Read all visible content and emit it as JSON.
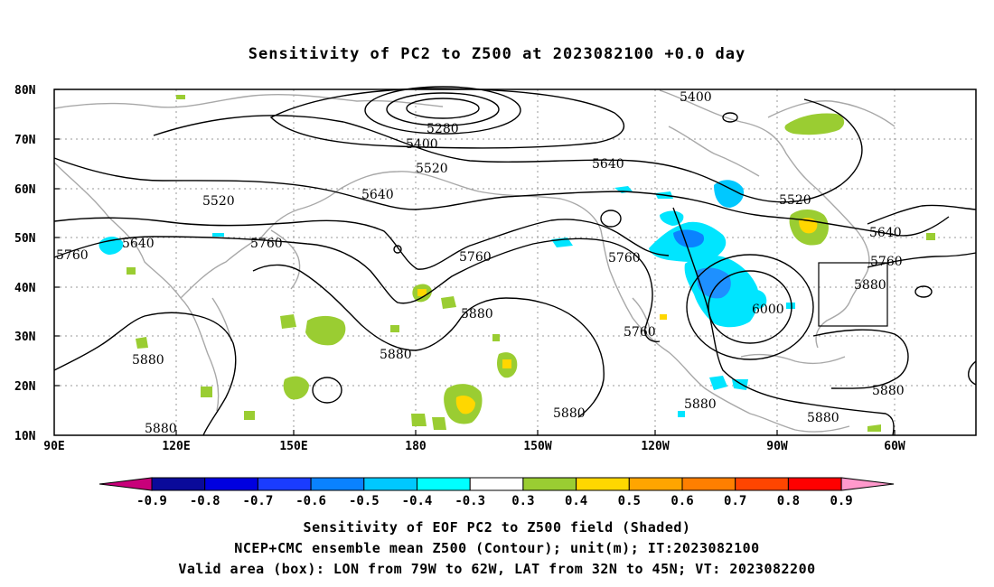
{
  "title": "Sensitivity of PC2 to Z500 at 2023082100 +0.0 day",
  "lat_labels": [
    "80N",
    "70N",
    "60N",
    "50N",
    "40N",
    "30N",
    "20N",
    "10N"
  ],
  "lon_labels": [
    "90E",
    "120E",
    "150E",
    "180",
    "150W",
    "120W",
    "90W",
    "60W"
  ],
  "contour_labels": [
    {
      "text": "5400",
      "kind": "z500"
    },
    {
      "text": "5280",
      "kind": "z500"
    },
    {
      "text": "5400",
      "kind": "z500"
    },
    {
      "text": "5520",
      "kind": "z500"
    },
    {
      "text": "5640",
      "kind": "z500"
    },
    {
      "text": "5520",
      "kind": "z500"
    },
    {
      "text": "5640",
      "kind": "z500"
    },
    {
      "text": "5520",
      "kind": "z500"
    },
    {
      "text": "5640",
      "kind": "z500"
    },
    {
      "text": "5760",
      "kind": "z500"
    },
    {
      "text": "5640",
      "kind": "z500"
    },
    {
      "text": "5760",
      "kind": "z500"
    },
    {
      "text": "5760",
      "kind": "z500"
    },
    {
      "text": "5760",
      "kind": "z500"
    },
    {
      "text": "5760",
      "kind": "z500"
    },
    {
      "text": "5880",
      "kind": "z500"
    },
    {
      "text": "5880",
      "kind": "z500"
    },
    {
      "text": "5880",
      "kind": "z500"
    },
    {
      "text": "5760",
      "kind": "z500"
    },
    {
      "text": "6000",
      "kind": "z500"
    },
    {
      "text": "5880",
      "kind": "z500"
    },
    {
      "text": "5880",
      "kind": "z500"
    },
    {
      "text": "5880",
      "kind": "z500"
    },
    {
      "text": "5880",
      "kind": "z500"
    },
    {
      "text": "5880",
      "kind": "z500"
    },
    {
      "text": "5880",
      "kind": "z500"
    }
  ],
  "colorbar": {
    "labels": [
      "-0.9",
      "-0.8",
      "-0.7",
      "-0.6",
      "-0.5",
      "-0.4",
      "-0.3",
      "0.3",
      "0.4",
      "0.5",
      "0.6",
      "0.7",
      "0.8",
      "0.9"
    ],
    "colors": [
      "#c8007a",
      "#0a0a9a",
      "#0000e0",
      "#1a3cff",
      "#0a82ff",
      "#00c8ff",
      "#00ffff",
      "#ffffff",
      "#9acd32",
      "#ffd700",
      "#ffa500",
      "#ff7f00",
      "#ff4500",
      "#ff0000",
      "#ff99cc"
    ]
  },
  "captions": {
    "line1": "Sensitivity of EOF PC2 to Z500 field (Shaded)",
    "line2": "NCEP+CMC ensemble mean Z500 (Contour); unit(m); IT:2023082100",
    "line3": "Valid area (box): LON from 79W to 62W, LAT from 32N to 45N; VT: 2023082200"
  }
}
